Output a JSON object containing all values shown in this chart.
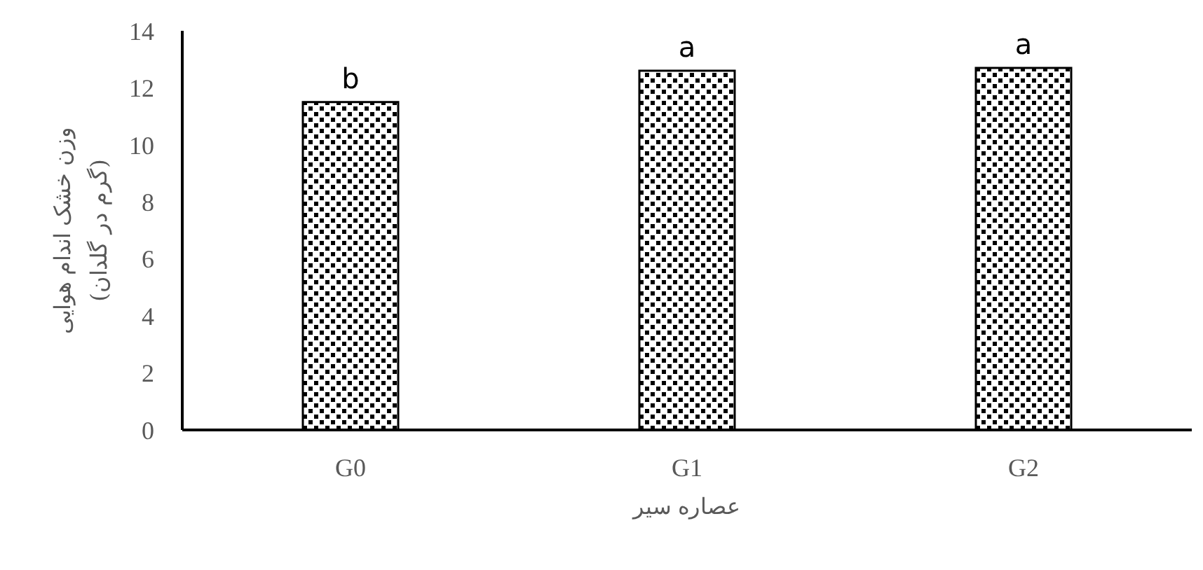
{
  "chart_data": {
    "type": "bar",
    "categories": [
      "G0",
      "G1",
      "G2"
    ],
    "values": [
      11.5,
      12.6,
      12.7
    ],
    "color": "#000000",
    "xlabel": "عصاره سیر",
    "ylabel": "وزن خشک اندام هوایی\n(گرم در گلدان)",
    "ylim": [
      0,
      14
    ],
    "yticks": [
      0,
      2,
      4,
      6,
      8,
      10,
      12,
      14
    ],
    "grid": false,
    "legend": false,
    "annotations": [
      {
        "text": "b",
        "x": "G0",
        "y": 11.5
      },
      {
        "text": "a",
        "x": "G1",
        "y": 12.6
      },
      {
        "text": "a",
        "x": "G2",
        "y": 12.7
      }
    ]
  }
}
